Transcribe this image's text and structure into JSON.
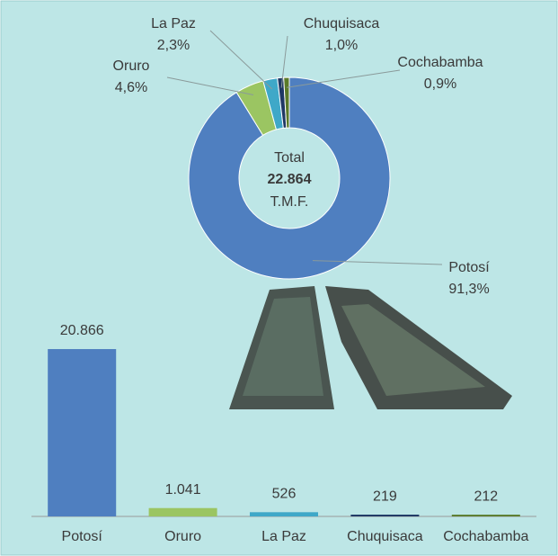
{
  "chart_data": [
    {
      "type": "donut",
      "categories": [
        "Potosí",
        "Oruro",
        "La Paz",
        "Chuquisaca",
        "Cochabamba"
      ],
      "values": [
        91.3,
        4.6,
        2.3,
        1.0,
        0.9
      ],
      "value_labels": [
        "91,3%",
        "4,6%",
        "2,3%",
        "1,0%",
        "0,9%"
      ],
      "colors": [
        "#4f7fc0",
        "#9bc562",
        "#3fa8c8",
        "#1f3864",
        "#5a7a2a"
      ],
      "annotations": [
        "Total",
        "22.864",
        "T.M.F."
      ]
    },
    {
      "type": "bar",
      "categories": [
        "Potosí",
        "Oruro",
        "La Paz",
        "Chuquisaca",
        "Cochabamba"
      ],
      "values": [
        20866,
        1041,
        526,
        219,
        212
      ],
      "value_labels": [
        "20.866",
        "1.041",
        "526",
        "219",
        "212"
      ],
      "colors": [
        "#4f7fc0",
        "#9bc562",
        "#3fa8c8",
        "#1f3864",
        "#5a7a2a"
      ]
    }
  ]
}
